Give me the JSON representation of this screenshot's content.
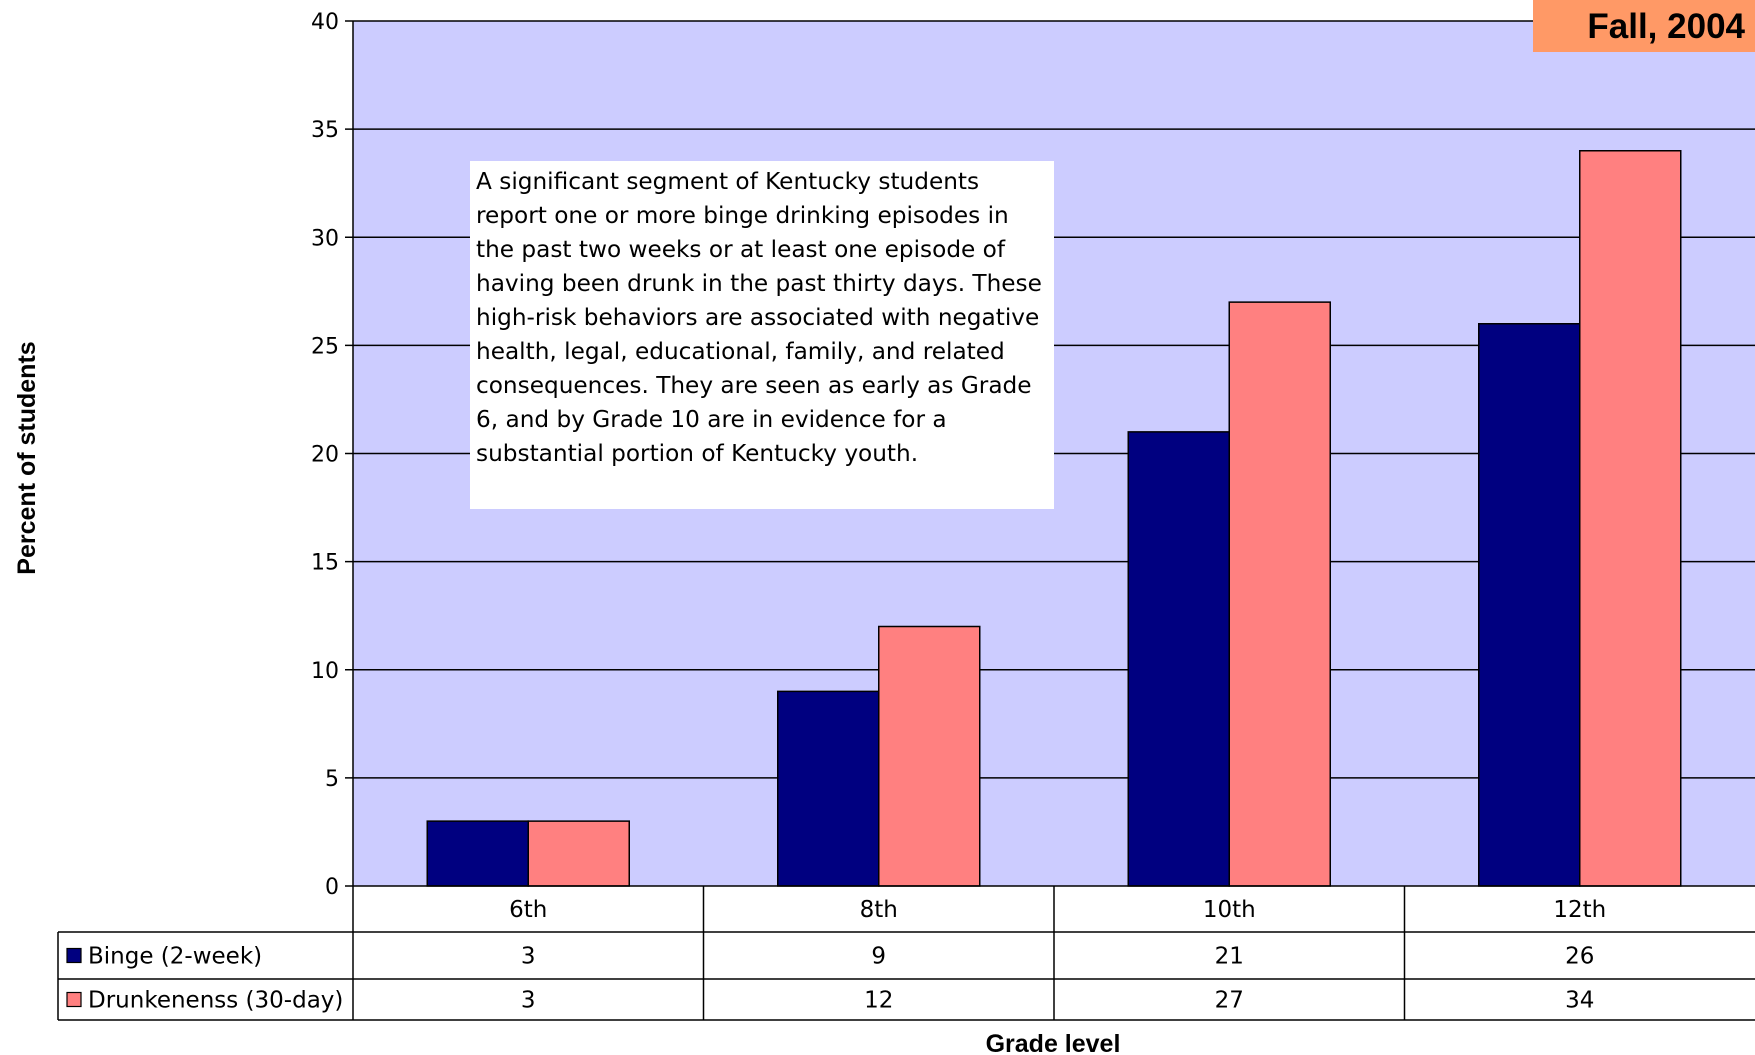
{
  "badge": {
    "text": "Fall, 2004",
    "color": "#FF9966"
  },
  "annotation": {
    "text": "A significant segment of Kentucky students report  one or more binge drinking episodes in the past two weeks or at least one episode of having been drunk in the past thirty days. These high-risk behaviors are associated with negative health, legal, educational, family, and related consequences. They are seen as early as Grade 6, and by Grade 10 are in evidence for a substantial portion of Kentucky youth."
  },
  "colors": {
    "plot_area": "#CCCCFF",
    "binge": "#000080",
    "drunkenness": "#FF8080"
  },
  "chart_data": {
    "type": "bar",
    "categories": [
      "6th",
      "8th",
      "10th",
      "12th"
    ],
    "series": [
      {
        "name": "Binge (2-week)",
        "values": [
          3,
          9,
          21,
          26
        ]
      },
      {
        "name": "Drunkenenss (30-day)",
        "values": [
          3,
          12,
          27,
          34
        ]
      }
    ],
    "xlabel": "Grade level",
    "ylabel": "Percent of students",
    "ylim": [
      0,
      40
    ],
    "yticks": [
      "0",
      "5",
      "10",
      "15",
      "20",
      "25",
      "30",
      "35",
      "40"
    ],
    "grid": true,
    "legend": "data-table"
  }
}
